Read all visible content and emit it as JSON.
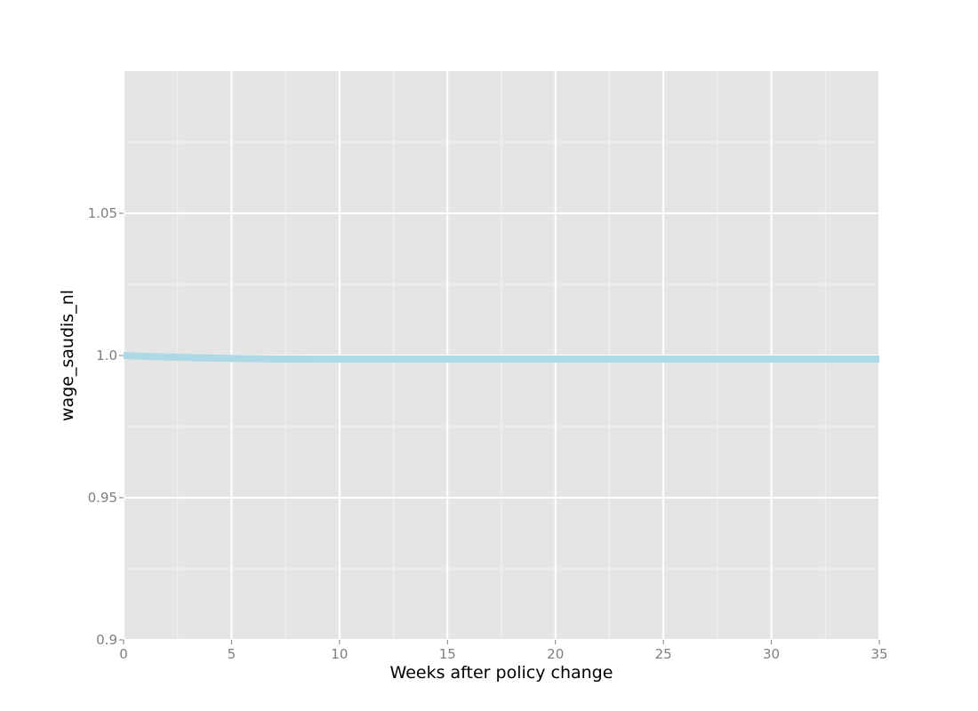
{
  "chart_data": {
    "type": "line",
    "title": "",
    "xlabel": "Weeks after policy change",
    "ylabel": "wage_saudis_nl",
    "xlim": [
      0,
      35
    ],
    "ylim": [
      0.9,
      1.1
    ],
    "x_ticks": [
      0,
      5,
      10,
      15,
      20,
      25,
      30,
      35
    ],
    "x_tick_labels": [
      "0",
      "5",
      "10",
      "15",
      "20",
      "25",
      "30",
      "35"
    ],
    "y_ticks": [
      0.9,
      0.95,
      1.0,
      1.05
    ],
    "y_tick_labels": [
      "0.9",
      "0.95",
      "1.0",
      "1.05"
    ],
    "grid": true,
    "legend": "none",
    "colors": {
      "panel": "#e5e5e5",
      "grid_major": "#ffffff",
      "grid_minor": "#f2f2f2",
      "series": "#add8e6",
      "tick_text": "#7f7f7f"
    },
    "series": [
      {
        "x": [
          0,
          1,
          2,
          3,
          4,
          5,
          6,
          7,
          8,
          9,
          10,
          11,
          12,
          13,
          14,
          15,
          16,
          17,
          18,
          19,
          20,
          21,
          22,
          23,
          24,
          25,
          26,
          27,
          28,
          29,
          30,
          31,
          32,
          33,
          34,
          35
        ],
        "values": [
          1.0,
          0.9997,
          0.9995,
          0.9993,
          0.9991,
          0.999,
          0.9989,
          0.9988,
          0.9988,
          0.9987,
          0.9987,
          0.9987,
          0.9987,
          0.9987,
          0.9987,
          0.9987,
          0.9987,
          0.9987,
          0.9987,
          0.9987,
          0.9987,
          0.9987,
          0.9987,
          0.9987,
          0.9987,
          0.9987,
          0.9987,
          0.9987,
          0.9987,
          0.9987,
          0.9987,
          0.9987,
          0.9987,
          0.9987,
          0.9987,
          0.9987
        ]
      }
    ]
  }
}
